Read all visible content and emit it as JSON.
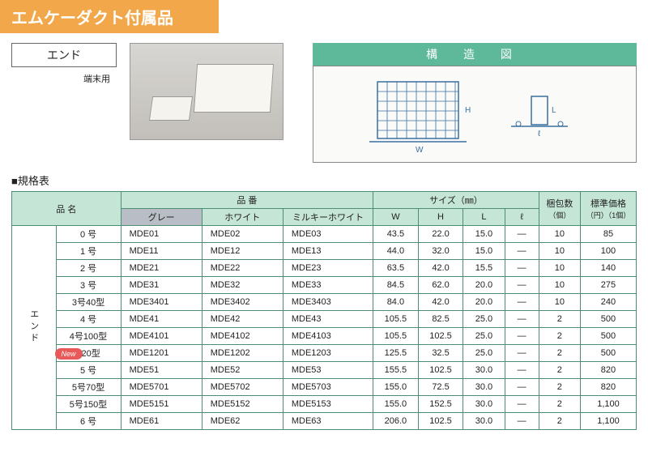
{
  "header": "エムケーダクト付属品",
  "product_label": "エンド",
  "product_sub": "端末用",
  "diagram_title": "構 造 図",
  "spec_title": "■規格表",
  "new_badge": "New",
  "columns": {
    "name": "品 名",
    "code": "品  番",
    "code_gray": "グレー",
    "code_white": "ホワイト",
    "code_milky": "ミルキーホワイト",
    "size": "サイズ（㎜）",
    "w": "W",
    "h": "H",
    "l": "L",
    "ell": "ℓ",
    "pack": "梱包数",
    "pack_unit": "（個）",
    "price": "標準価格",
    "price_unit": "（円）（1個）"
  },
  "group_label": "エンド",
  "rows": [
    {
      "name": "0 号",
      "c1": "MDE01",
      "c2": "MDE02",
      "c3": "MDE03",
      "w": "43.5",
      "h": "22.0",
      "l": "15.0",
      "ell": "—",
      "pack": "10",
      "price": "85"
    },
    {
      "name": "1 号",
      "c1": "MDE11",
      "c2": "MDE12",
      "c3": "MDE13",
      "w": "44.0",
      "h": "32.0",
      "l": "15.0",
      "ell": "—",
      "pack": "10",
      "price": "100"
    },
    {
      "name": "2 号",
      "c1": "MDE21",
      "c2": "MDE22",
      "c3": "MDE23",
      "w": "63.5",
      "h": "42.0",
      "l": "15.5",
      "ell": "—",
      "pack": "10",
      "price": "140"
    },
    {
      "name": "3 号",
      "c1": "MDE31",
      "c2": "MDE32",
      "c3": "MDE33",
      "w": "84.5",
      "h": "62.0",
      "l": "20.0",
      "ell": "—",
      "pack": "10",
      "price": "275"
    },
    {
      "name": "3号40型",
      "c1": "MDE3401",
      "c2": "MDE3402",
      "c3": "MDE3403",
      "w": "84.0",
      "h": "42.0",
      "l": "20.0",
      "ell": "—",
      "pack": "10",
      "price": "240"
    },
    {
      "name": "4 号",
      "c1": "MDE41",
      "c2": "MDE42",
      "c3": "MDE43",
      "w": "105.5",
      "h": "82.5",
      "l": "25.0",
      "ell": "—",
      "pack": "2",
      "price": "500"
    },
    {
      "name": "4号100型",
      "c1": "MDE4101",
      "c2": "MDE4102",
      "c3": "MDE4103",
      "w": "105.5",
      "h": "102.5",
      "l": "25.0",
      "ell": "—",
      "pack": "2",
      "price": "500"
    },
    {
      "name": "120型",
      "c1": "MDE1201",
      "c2": "MDE1202",
      "c3": "MDE1203",
      "w": "125.5",
      "h": "32.5",
      "l": "25.0",
      "ell": "—",
      "pack": "2",
      "price": "500",
      "new": true
    },
    {
      "name": "5 号",
      "c1": "MDE51",
      "c2": "MDE52",
      "c3": "MDE53",
      "w": "155.5",
      "h": "102.5",
      "l": "30.0",
      "ell": "—",
      "pack": "2",
      "price": "820"
    },
    {
      "name": "5号70型",
      "c1": "MDE5701",
      "c2": "MDE5702",
      "c3": "MDE5703",
      "w": "155.0",
      "h": "72.5",
      "l": "30.0",
      "ell": "—",
      "pack": "2",
      "price": "820"
    },
    {
      "name": "5号150型",
      "c1": "MDE5151",
      "c2": "MDE5152",
      "c3": "MDE5153",
      "w": "155.0",
      "h": "152.5",
      "l": "30.0",
      "ell": "—",
      "pack": "2",
      "price": "1,100"
    },
    {
      "name": "6 号",
      "c1": "MDE61",
      "c2": "MDE62",
      "c3": "MDE63",
      "w": "206.0",
      "h": "102.5",
      "l": "30.0",
      "ell": "—",
      "pack": "2",
      "price": "1,100"
    }
  ],
  "colors": {
    "accent": "#f2a84a",
    "teal": "#5eb89a",
    "teal_light": "#c5e5d7",
    "gray_head": "#b9bdc6",
    "border": "#4d8d74"
  }
}
